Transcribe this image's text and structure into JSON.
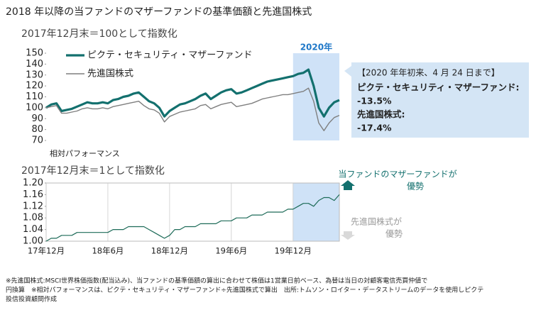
{
  "title": "2018 年以降の当ファンドのマザーファンドの基準価額と先進国株式",
  "chart_data": [
    {
      "type": "line",
      "subtitle": "2017年12月末＝100として指数化",
      "ylim": [
        70,
        150
      ],
      "yticks": [
        70,
        80,
        90,
        100,
        110,
        120,
        130,
        140,
        150
      ],
      "legend": "upper left",
      "highlight": {
        "label": "2020年",
        "from": "19年12月",
        "color": "#cfe2f7"
      },
      "series": [
        {
          "name": "ピクテ・セキュリティ・マザーファンド",
          "color": "#13706e",
          "width": 3.2,
          "values": [
            100,
            103,
            104,
            97,
            98,
            99,
            101,
            103,
            105,
            104,
            104,
            105,
            104,
            107,
            108,
            110,
            111,
            113,
            114,
            110,
            106,
            104,
            100,
            92,
            97,
            100,
            103,
            104,
            106,
            108,
            111,
            113,
            108,
            111,
            114,
            116,
            117,
            113,
            114,
            116,
            118,
            120,
            122,
            124,
            125,
            126,
            127,
            128,
            129,
            131,
            132,
            135,
            120,
            100,
            92,
            100,
            105,
            107
          ]
        },
        {
          "name": "先進国株式",
          "color": "#7f7f7f",
          "width": 1.4,
          "values": [
            100,
            101,
            102,
            95,
            95,
            96,
            97,
            99,
            100,
            99,
            99,
            100,
            99,
            101,
            102,
            103,
            104,
            105,
            106,
            102,
            99,
            98,
            95,
            87,
            92,
            94,
            96,
            97,
            98,
            99,
            102,
            103,
            99,
            101,
            103,
            104,
            105,
            101,
            102,
            103,
            104,
            106,
            108,
            109,
            110,
            111,
            112,
            112,
            113,
            114,
            115,
            118,
            106,
            86,
            79,
            86,
            91,
            93
          ]
        }
      ]
    },
    {
      "type": "line",
      "title": "相対パフォーマンス",
      "subtitle": "2017年12月末＝1として指数化",
      "ylim": [
        1.0,
        1.2
      ],
      "yticks": [
        {
          "value": 1.0,
          "label": "1.00"
        },
        {
          "value": 1.04,
          "label": "1.04"
        },
        {
          "value": 1.08,
          "label": "1.08"
        },
        {
          "value": 1.12,
          "label": "1.12"
        },
        {
          "value": 1.16,
          "label": "1.16"
        },
        {
          "value": 1.2,
          "label": "1.20"
        }
      ],
      "xgrid": true,
      "categories": [
        "17年12月",
        null,
        null,
        null,
        null,
        null,
        null,
        null,
        null,
        null,
        null,
        null,
        "18年6月",
        null,
        null,
        null,
        null,
        null,
        null,
        null,
        null,
        null,
        null,
        null,
        "18年12月",
        null,
        null,
        null,
        null,
        null,
        null,
        null,
        null,
        null,
        null,
        null,
        "19年6月",
        null,
        null,
        null,
        null,
        null,
        null,
        null,
        null,
        null,
        null,
        null,
        "19年12月",
        null,
        null,
        null,
        null,
        null,
        null,
        null,
        null,
        null
      ],
      "series": [
        {
          "name": "相対パフォーマンス",
          "color": "#1d6b58",
          "width": 1.2,
          "values": [
            1.0,
            1.01,
            1.01,
            1.02,
            1.02,
            1.02,
            1.03,
            1.03,
            1.03,
            1.03,
            1.03,
            1.03,
            1.03,
            1.04,
            1.04,
            1.04,
            1.05,
            1.05,
            1.05,
            1.05,
            1.04,
            1.03,
            1.02,
            1.01,
            1.02,
            1.04,
            1.04,
            1.05,
            1.05,
            1.05,
            1.06,
            1.06,
            1.06,
            1.06,
            1.07,
            1.07,
            1.07,
            1.08,
            1.08,
            1.08,
            1.09,
            1.09,
            1.09,
            1.1,
            1.1,
            1.1,
            1.1,
            1.11,
            1.11,
            1.12,
            1.13,
            1.13,
            1.12,
            1.14,
            1.15,
            1.15,
            1.14,
            1.16
          ]
        }
      ],
      "annotations": [
        {
          "lines": [
            "当ファンドのマザーファンドが",
            "優勢"
          ],
          "color": "#13706e"
        },
        {
          "lines": [
            "先進国株式が",
            "優勢"
          ],
          "color": "#9a9a9a"
        }
      ]
    }
  ],
  "callout": {
    "title": "【2020 年年初来、4 月 24 日まで】",
    "items": [
      {
        "name": "ピクテ・セキュリティ・マザーファンド:",
        "value": -13.5,
        "label": "-13.5%"
      },
      {
        "name": "先進国株式:",
        "value": -17.4,
        "label": "-17.4%"
      }
    ]
  },
  "footnote": [
    "※先進国株式:MSCI世界株価指数(配当込み)、当ファンドの基準価額の算出に合わせて株価は1営業日前ベース、為替は当日の対顧客電信売買仲値で",
    "円換算　※相対パフォーマンスは、ピクテ・セキュリティ・マザーファンド÷先進国株式で算出　出所:トムソン・ロイター・データストリームのデータを使用しピクテ",
    "投信投資顧問作成"
  ]
}
